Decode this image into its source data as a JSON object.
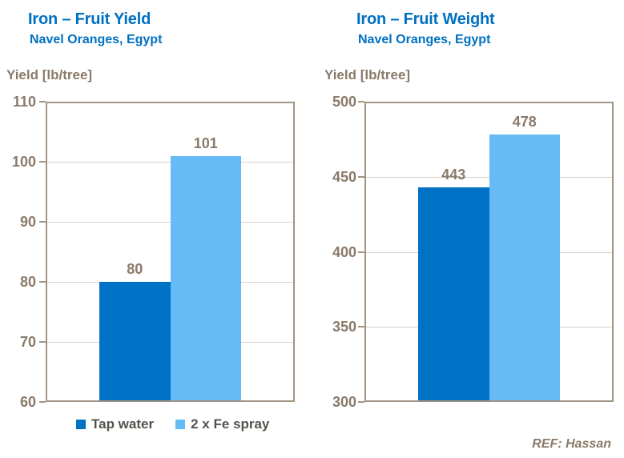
{
  "page": {
    "background": "#FFFFFF"
  },
  "colors": {
    "title_blue": "#0070C0",
    "axis_text": "#8A7A6A",
    "plot_border": "#A39484",
    "gridline": "#D9D1C7",
    "legend_text": "#56514B",
    "series": [
      "#0072C6",
      "#66BBF7"
    ]
  },
  "chart_data": [
    {
      "type": "bar",
      "title": "Iron – Fruit Yield",
      "subtitle": "Navel Oranges, Egypt",
      "ylabel": "Yield [lb/tree]",
      "xlabel": "",
      "categories": [
        "Tap water",
        "2 x Fe spray"
      ],
      "values": [
        80,
        101
      ],
      "ylim": [
        60,
        110
      ],
      "yticks": [
        110,
        100,
        90,
        80,
        70,
        60
      ],
      "grid": true,
      "legend_position": "bottom"
    },
    {
      "type": "bar",
      "title": "Iron – Fruit Weight",
      "subtitle": "Navel Oranges, Egypt",
      "ylabel": "Yield [lb/tree]",
      "xlabel": "",
      "categories": [
        "Tap water",
        "2 x Fe spray"
      ],
      "values": [
        443,
        478
      ],
      "ylim": [
        300,
        500
      ],
      "yticks": [
        500,
        450,
        400,
        350,
        300
      ],
      "grid": true,
      "legend_position": "none"
    }
  ],
  "legend": {
    "items": [
      {
        "label": "Tap water",
        "color": "#0072C6"
      },
      {
        "label": "2 x Fe spray",
        "color": "#66BBF7"
      }
    ]
  },
  "footer": {
    "ref": "REF: Hassan"
  }
}
